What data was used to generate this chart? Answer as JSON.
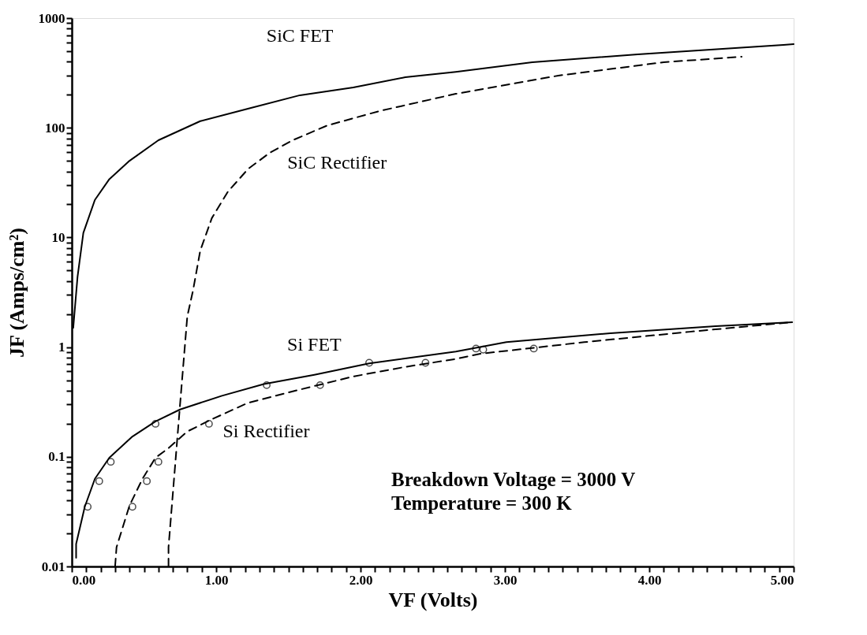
{
  "chart_data": {
    "type": "line",
    "xlabel": "VF  (Volts)",
    "ylabel": "JF  (Amps/cm²)",
    "log": "y",
    "grid": false,
    "xlim": [
      0,
      5
    ],
    "ylim": [
      0.01,
      1000
    ],
    "xticks": [
      {
        "value": 0,
        "label": "0.00"
      },
      {
        "value": 0.1,
        "label": null
      },
      {
        "value": 0.2,
        "label": null
      },
      {
        "value": 0.3,
        "label": null
      },
      {
        "value": 0.4,
        "label": null
      },
      {
        "value": 0.5,
        "label": null
      },
      {
        "value": 0.6,
        "label": null
      },
      {
        "value": 0.7,
        "label": null
      },
      {
        "value": 0.8,
        "label": null
      },
      {
        "value": 0.9,
        "label": null
      },
      {
        "value": 1,
        "label": "1.00"
      },
      {
        "value": 1.1,
        "label": null
      },
      {
        "value": 1.2,
        "label": null
      },
      {
        "value": 1.3,
        "label": null
      },
      {
        "value": 1.4,
        "label": null
      },
      {
        "value": 1.5,
        "label": null
      },
      {
        "value": 1.6,
        "label": null
      },
      {
        "value": 1.7,
        "label": null
      },
      {
        "value": 1.8,
        "label": null
      },
      {
        "value": 1.9,
        "label": null
      },
      {
        "value": 2,
        "label": "2.00"
      },
      {
        "value": 2.1,
        "label": null
      },
      {
        "value": 2.2,
        "label": null
      },
      {
        "value": 2.3,
        "label": null
      },
      {
        "value": 2.4,
        "label": null
      },
      {
        "value": 2.5,
        "label": null
      },
      {
        "value": 2.6,
        "label": null
      },
      {
        "value": 2.7,
        "label": null
      },
      {
        "value": 2.8,
        "label": null
      },
      {
        "value": 2.9,
        "label": null
      },
      {
        "value": 3,
        "label": "3.00"
      },
      {
        "value": 3.1,
        "label": null
      },
      {
        "value": 3.2,
        "label": null
      },
      {
        "value": 3.3,
        "label": null
      },
      {
        "value": 3.4,
        "label": null
      },
      {
        "value": 3.5,
        "label": null
      },
      {
        "value": 3.6,
        "label": null
      },
      {
        "value": 3.7,
        "label": null
      },
      {
        "value": 3.8,
        "label": null
      },
      {
        "value": 3.9,
        "label": null
      },
      {
        "value": 4,
        "label": "4.00"
      },
      {
        "value": 4.1,
        "label": null
      },
      {
        "value": 4.2,
        "label": null
      },
      {
        "value": 4.3,
        "label": null
      },
      {
        "value": 4.4,
        "label": null
      },
      {
        "value": 4.5,
        "label": null
      },
      {
        "value": 4.6,
        "label": null
      },
      {
        "value": 4.7,
        "label": null
      },
      {
        "value": 4.8,
        "label": null
      },
      {
        "value": 4.9,
        "label": null
      },
      {
        "value": 5,
        "label": "5.00"
      }
    ],
    "yticks": [
      0.01,
      {
        "value": 0.02,
        "label": null
      },
      {
        "value": 0.03,
        "label": null
      },
      {
        "value": 0.04,
        "label": null
      },
      {
        "value": 0.05,
        "label": null
      },
      {
        "value": 0.06,
        "label": null
      },
      {
        "value": 0.07,
        "label": null
      },
      {
        "value": 0.08,
        "label": null
      },
      {
        "value": 0.09,
        "label": null
      },
      0.1,
      {
        "value": 0.2,
        "label": null
      },
      {
        "value": 0.3,
        "label": null
      },
      {
        "value": 0.4,
        "label": null
      },
      {
        "value": 0.5,
        "label": null
      },
      {
        "value": 0.6,
        "label": null
      },
      {
        "value": 0.7,
        "label": null
      },
      {
        "value": 0.8,
        "label": null
      },
      {
        "value": 0.9,
        "label": null
      },
      1,
      {
        "value": 2,
        "label": null
      },
      {
        "value": 3,
        "label": null
      },
      {
        "value": 4,
        "label": null
      },
      {
        "value": 5,
        "label": null
      },
      {
        "value": 6,
        "label": null
      },
      {
        "value": 7,
        "label": null
      },
      {
        "value": 8,
        "label": null
      },
      {
        "value": 9,
        "label": null
      },
      10,
      {
        "value": 20,
        "label": null
      },
      {
        "value": 30,
        "label": null
      },
      {
        "value": 40,
        "label": null
      },
      {
        "value": 50,
        "label": null
      },
      {
        "value": 60,
        "label": null
      },
      {
        "value": 70,
        "label": null
      },
      {
        "value": 80,
        "label": null
      },
      {
        "value": 90,
        "label": null
      },
      100,
      {
        "value": 200,
        "label": null
      },
      {
        "value": 300,
        "label": null
      },
      {
        "value": 400,
        "label": null
      },
      {
        "value": 500,
        "label": null
      },
      {
        "value": 600,
        "label": null
      },
      {
        "value": 700,
        "label": null
      },
      {
        "value": 800,
        "label": null
      },
      {
        "value": 900,
        "label": null
      },
      1000
    ],
    "series": [
      {
        "name": "SiC FET",
        "color": "#000000",
        "line_style": "solid",
        "marker": "none",
        "x": [
          0.01,
          0.04,
          0.08,
          0.16,
          0.26,
          0.4,
          0.6,
          0.89,
          1.22,
          1.58,
          1.95,
          2.31,
          2.66,
          3.19,
          3.92,
          4.93,
          5.0
        ],
        "values": [
          1.5,
          4.4,
          11,
          22,
          34,
          50,
          77,
          115,
          149,
          198,
          233,
          289,
          324,
          396,
          468,
          570,
          580
        ]
      },
      {
        "name": "SiC Rectifier",
        "color": "#000000",
        "line_style": "dashed",
        "marker": "none",
        "x": [
          0.67,
          0.67,
          0.75,
          0.8,
          0.84,
          0.89,
          0.97,
          1.08,
          1.22,
          1.37,
          1.53,
          1.77,
          2.13,
          2.66,
          3.37,
          4.1,
          4.64
        ],
        "values": [
          0.01,
          0.015,
          0.3,
          1.9,
          3.3,
          7.6,
          15,
          26,
          42,
          59,
          77,
          105,
          142,
          204,
          299,
          396,
          445
        ]
      },
      {
        "name": "Si FET",
        "color": "#000000",
        "line_style": "solid",
        "marker": "none",
        "x": [
          0.03,
          0.03,
          0.09,
          0.16,
          0.26,
          0.42,
          0.58,
          0.75,
          1.04,
          1.33,
          1.68,
          2.06,
          2.66,
          3.01,
          3.73,
          4.46,
          4.99
        ],
        "values": [
          0.012,
          0.016,
          0.035,
          0.063,
          0.098,
          0.153,
          0.21,
          0.27,
          0.36,
          0.46,
          0.56,
          0.71,
          0.91,
          1.11,
          1.34,
          1.55,
          1.69
        ]
      },
      {
        "name": "Si Rectifier",
        "color": "#000000",
        "line_style": "dashed",
        "marker": "none",
        "x": [
          0.3,
          0.31,
          0.4,
          0.49,
          0.58,
          0.67,
          0.8,
          0.97,
          1.22,
          1.58,
          1.95,
          2.31,
          2.66,
          2.83,
          3.55,
          4.28,
          4.99
        ],
        "values": [
          0.01,
          0.015,
          0.036,
          0.063,
          0.098,
          0.12,
          0.17,
          0.22,
          0.31,
          0.41,
          0.54,
          0.66,
          0.78,
          0.87,
          1.11,
          1.38,
          1.69
        ]
      },
      {
        "type": "scatter",
        "color": "#000000",
        "marker": "circle",
        "x": [
          0.11,
          0.19,
          0.27,
          0.58,
          1.35,
          2.06,
          2.8,
          0.42,
          0.52,
          0.6,
          0.95,
          1.72,
          2.45,
          2.85,
          3.2
        ],
        "values": [
          0.035,
          0.06,
          0.09,
          0.2,
          0.45,
          0.72,
          0.97,
          0.035,
          0.06,
          0.09,
          0.2,
          0.45,
          0.72,
          0.95,
          0.97
        ]
      }
    ],
    "annotations": [
      "Breakdown Voltage  =  3000 V",
      "Temperature  =  300 K"
    ]
  }
}
